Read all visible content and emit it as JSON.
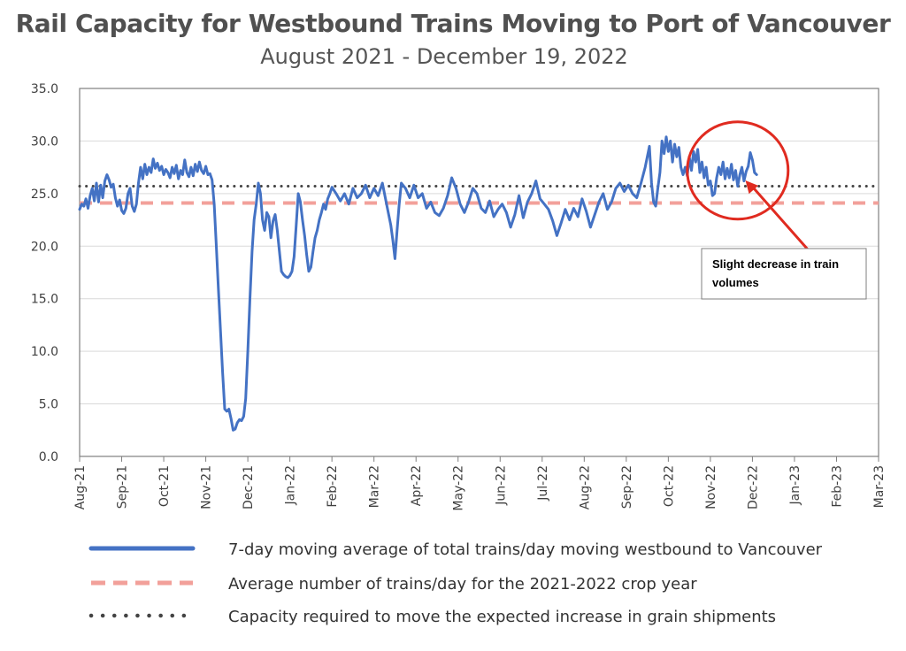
{
  "chart_data": {
    "type": "line",
    "title": "Rail Capacity for Westbound Trains Moving to Port of Vancouver",
    "subtitle": "August 2021 - December 19, 2022",
    "xlabel": "",
    "ylabel": "",
    "x_tick_labels": [
      "Aug-21",
      "Sep-21",
      "Oct-21",
      "Nov-21",
      "Dec-21",
      "Jan-22",
      "Feb-22",
      "Mar-22",
      "Apr-22",
      "May-22",
      "Jun-22",
      "Jul-22",
      "Aug-22",
      "Sep-22",
      "Oct-22",
      "Nov-22",
      "Dec-22",
      "Jan-23",
      "Feb-23",
      "Mar-23"
    ],
    "y_tick_labels": [
      "0.0",
      "5.0",
      "10.0",
      "15.0",
      "20.0",
      "25.0",
      "30.0",
      "35.0"
    ],
    "ylim": [
      0,
      35
    ],
    "x_unit": "months since Aug-21",
    "xlim": [
      0,
      19
    ],
    "grid": "horizontal",
    "series": [
      {
        "name": "7-day moving average of total trains/day moving westbound to Vancouver",
        "color": "#4472C4",
        "points": [
          [
            0.0,
            23.5
          ],
          [
            0.05,
            24.0
          ],
          [
            0.1,
            23.8
          ],
          [
            0.15,
            24.5
          ],
          [
            0.2,
            23.6
          ],
          [
            0.25,
            24.8
          ],
          [
            0.3,
            25.5
          ],
          [
            0.35,
            24.3
          ],
          [
            0.4,
            26.0
          ],
          [
            0.45,
            24.2
          ],
          [
            0.5,
            25.8
          ],
          [
            0.55,
            24.6
          ],
          [
            0.6,
            26.2
          ],
          [
            0.65,
            26.8
          ],
          [
            0.7,
            26.3
          ],
          [
            0.75,
            25.6
          ],
          [
            0.8,
            25.9
          ],
          [
            0.85,
            24.6
          ],
          [
            0.9,
            23.8
          ],
          [
            0.95,
            24.4
          ],
          [
            1.0,
            23.4
          ],
          [
            1.05,
            23.1
          ],
          [
            1.1,
            23.6
          ],
          [
            1.15,
            25.0
          ],
          [
            1.2,
            25.5
          ],
          [
            1.25,
            23.8
          ],
          [
            1.3,
            23.3
          ],
          [
            1.35,
            24.0
          ],
          [
            1.4,
            26.0
          ],
          [
            1.45,
            27.5
          ],
          [
            1.5,
            26.4
          ],
          [
            1.55,
            27.8
          ],
          [
            1.6,
            26.8
          ],
          [
            1.65,
            27.5
          ],
          [
            1.7,
            27.0
          ],
          [
            1.75,
            28.3
          ],
          [
            1.8,
            27.4
          ],
          [
            1.85,
            27.9
          ],
          [
            1.9,
            27.2
          ],
          [
            1.95,
            27.6
          ],
          [
            2.0,
            26.8
          ],
          [
            2.05,
            27.3
          ],
          [
            2.1,
            27.0
          ],
          [
            2.15,
            26.5
          ],
          [
            2.2,
            27.5
          ],
          [
            2.25,
            26.9
          ],
          [
            2.3,
            27.7
          ],
          [
            2.35,
            26.4
          ],
          [
            2.4,
            27.2
          ],
          [
            2.45,
            26.8
          ],
          [
            2.5,
            28.2
          ],
          [
            2.55,
            27.0
          ],
          [
            2.6,
            26.6
          ],
          [
            2.65,
            27.5
          ],
          [
            2.7,
            26.7
          ],
          [
            2.75,
            27.8
          ],
          [
            2.8,
            27.1
          ],
          [
            2.85,
            28.0
          ],
          [
            2.9,
            27.2
          ],
          [
            2.95,
            26.9
          ],
          [
            3.0,
            27.6
          ],
          [
            3.05,
            26.8
          ],
          [
            3.1,
            26.9
          ],
          [
            3.15,
            26.3
          ],
          [
            3.2,
            24.0
          ],
          [
            3.25,
            20.0
          ],
          [
            3.3,
            16.0
          ],
          [
            3.35,
            12.0
          ],
          [
            3.4,
            8.0
          ],
          [
            3.45,
            4.5
          ],
          [
            3.5,
            4.3
          ],
          [
            3.55,
            4.5
          ],
          [
            3.6,
            3.6
          ],
          [
            3.65,
            2.5
          ],
          [
            3.7,
            2.6
          ],
          [
            3.75,
            3.2
          ],
          [
            3.8,
            3.5
          ],
          [
            3.85,
            3.4
          ],
          [
            3.9,
            3.8
          ],
          [
            3.95,
            5.5
          ],
          [
            4.0,
            10.0
          ],
          [
            4.05,
            15.0
          ],
          [
            4.1,
            19.5
          ],
          [
            4.15,
            22.5
          ],
          [
            4.2,
            24.0
          ],
          [
            4.25,
            26.0
          ],
          [
            4.3,
            25.0
          ],
          [
            4.35,
            22.5
          ],
          [
            4.4,
            21.5
          ],
          [
            4.45,
            23.2
          ],
          [
            4.5,
            22.8
          ],
          [
            4.55,
            20.8
          ],
          [
            4.6,
            22.4
          ],
          [
            4.65,
            23.0
          ],
          [
            4.7,
            21.5
          ],
          [
            4.75,
            19.5
          ],
          [
            4.8,
            17.6
          ],
          [
            4.85,
            17.3
          ],
          [
            4.9,
            17.1
          ],
          [
            4.95,
            17.0
          ],
          [
            5.0,
            17.2
          ],
          [
            5.05,
            17.6
          ],
          [
            5.1,
            19.0
          ],
          [
            5.15,
            22.0
          ],
          [
            5.2,
            25.0
          ],
          [
            5.25,
            24.2
          ],
          [
            5.3,
            22.5
          ],
          [
            5.35,
            21.0
          ],
          [
            5.4,
            19.2
          ],
          [
            5.45,
            17.6
          ],
          [
            5.5,
            18.0
          ],
          [
            5.55,
            19.5
          ],
          [
            5.6,
            20.8
          ],
          [
            5.65,
            21.5
          ],
          [
            5.7,
            22.5
          ],
          [
            5.75,
            23.2
          ],
          [
            5.8,
            24.0
          ],
          [
            5.85,
            23.5
          ],
          [
            5.9,
            24.5
          ],
          [
            5.95,
            25.0
          ],
          [
            6.0,
            25.6
          ],
          [
            6.1,
            25.0
          ],
          [
            6.2,
            24.3
          ],
          [
            6.3,
            25.0
          ],
          [
            6.4,
            24.0
          ],
          [
            6.5,
            25.5
          ],
          [
            6.6,
            24.6
          ],
          [
            6.7,
            25.0
          ],
          [
            6.8,
            25.8
          ],
          [
            6.9,
            24.6
          ],
          [
            7.0,
            25.5
          ],
          [
            7.1,
            24.8
          ],
          [
            7.2,
            26.0
          ],
          [
            7.3,
            24.0
          ],
          [
            7.4,
            22.0
          ],
          [
            7.45,
            20.5
          ],
          [
            7.5,
            18.8
          ],
          [
            7.55,
            21.5
          ],
          [
            7.6,
            24.0
          ],
          [
            7.65,
            26.0
          ],
          [
            7.75,
            25.5
          ],
          [
            7.85,
            24.6
          ],
          [
            7.95,
            25.8
          ],
          [
            8.05,
            24.6
          ],
          [
            8.15,
            25.0
          ],
          [
            8.25,
            23.6
          ],
          [
            8.35,
            24.2
          ],
          [
            8.45,
            23.2
          ],
          [
            8.55,
            22.9
          ],
          [
            8.65,
            23.6
          ],
          [
            8.75,
            24.8
          ],
          [
            8.85,
            26.5
          ],
          [
            8.95,
            25.5
          ],
          [
            9.05,
            24.0
          ],
          [
            9.15,
            23.2
          ],
          [
            9.25,
            24.2
          ],
          [
            9.35,
            25.5
          ],
          [
            9.45,
            25.0
          ],
          [
            9.55,
            23.6
          ],
          [
            9.65,
            23.2
          ],
          [
            9.75,
            24.3
          ],
          [
            9.85,
            22.8
          ],
          [
            9.95,
            23.5
          ],
          [
            10.05,
            24.0
          ],
          [
            10.15,
            23.2
          ],
          [
            10.25,
            21.8
          ],
          [
            10.35,
            23.0
          ],
          [
            10.45,
            24.8
          ],
          [
            10.55,
            22.7
          ],
          [
            10.65,
            24.2
          ],
          [
            10.75,
            25.0
          ],
          [
            10.85,
            26.2
          ],
          [
            10.95,
            24.5
          ],
          [
            11.05,
            24.0
          ],
          [
            11.15,
            23.5
          ],
          [
            11.25,
            22.4
          ],
          [
            11.35,
            21.0
          ],
          [
            11.45,
            22.2
          ],
          [
            11.55,
            23.5
          ],
          [
            11.65,
            22.5
          ],
          [
            11.75,
            23.6
          ],
          [
            11.85,
            22.8
          ],
          [
            11.95,
            24.5
          ],
          [
            12.05,
            23.3
          ],
          [
            12.15,
            21.8
          ],
          [
            12.25,
            23.0
          ],
          [
            12.35,
            24.2
          ],
          [
            12.45,
            25.0
          ],
          [
            12.55,
            23.5
          ],
          [
            12.65,
            24.2
          ],
          [
            12.75,
            25.5
          ],
          [
            12.85,
            26.0
          ],
          [
            12.95,
            25.2
          ],
          [
            13.05,
            25.8
          ],
          [
            13.15,
            25.0
          ],
          [
            13.25,
            24.6
          ],
          [
            13.35,
            26.0
          ],
          [
            13.45,
            27.5
          ],
          [
            13.55,
            29.5
          ],
          [
            13.6,
            26.0
          ],
          [
            13.65,
            24.2
          ],
          [
            13.7,
            23.8
          ],
          [
            13.75,
            25.5
          ],
          [
            13.8,
            27.0
          ],
          [
            13.85,
            30.0
          ],
          [
            13.9,
            28.8
          ],
          [
            13.95,
            30.4
          ],
          [
            14.0,
            29.0
          ],
          [
            14.05,
            30.0
          ],
          [
            14.1,
            28.0
          ],
          [
            14.15,
            29.7
          ],
          [
            14.2,
            28.5
          ],
          [
            14.25,
            29.4
          ],
          [
            14.3,
            27.5
          ],
          [
            14.35,
            26.8
          ],
          [
            14.4,
            27.5
          ],
          [
            14.45,
            26.7
          ],
          [
            14.5,
            28.5
          ],
          [
            14.55,
            27.2
          ],
          [
            14.6,
            29.0
          ],
          [
            14.65,
            28.0
          ],
          [
            14.7,
            29.2
          ],
          [
            14.75,
            27.0
          ],
          [
            14.8,
            28.0
          ],
          [
            14.85,
            26.5
          ],
          [
            14.9,
            27.5
          ],
          [
            14.95,
            25.8
          ],
          [
            15.0,
            26.2
          ],
          [
            15.05,
            24.8
          ],
          [
            15.1,
            25.0
          ],
          [
            15.15,
            26.5
          ],
          [
            15.2,
            27.5
          ],
          [
            15.25,
            26.8
          ],
          [
            15.3,
            28.0
          ],
          [
            15.35,
            26.4
          ],
          [
            15.4,
            27.4
          ],
          [
            15.45,
            26.5
          ],
          [
            15.5,
            27.8
          ],
          [
            15.55,
            26.3
          ],
          [
            15.6,
            27.2
          ],
          [
            15.65,
            25.7
          ],
          [
            15.7,
            26.8
          ],
          [
            15.75,
            27.5
          ],
          [
            15.8,
            26.2
          ],
          [
            15.85,
            27.1
          ],
          [
            15.9,
            27.6
          ],
          [
            15.95,
            28.9
          ],
          [
            16.0,
            28.2
          ],
          [
            16.05,
            27.0
          ],
          [
            16.1,
            26.8
          ]
        ]
      },
      {
        "name": "Average number of trains/day for the 2021-2022 crop year",
        "color": "#F2A09A",
        "points": [
          [
            0,
            24.1
          ],
          [
            19,
            24.1
          ]
        ]
      },
      {
        "name": "Capacity required to move the expected increase in grain shipments",
        "color": "#444444",
        "points": [
          [
            0,
            25.7
          ],
          [
            19,
            25.7
          ]
        ]
      }
    ],
    "annotation": {
      "text": "Slight decrease in train volumes",
      "circle_center": [
        15.65,
        27.2
      ],
      "arrow_target": [
        15.75,
        26.5
      ]
    },
    "legend_position": "bottom"
  }
}
